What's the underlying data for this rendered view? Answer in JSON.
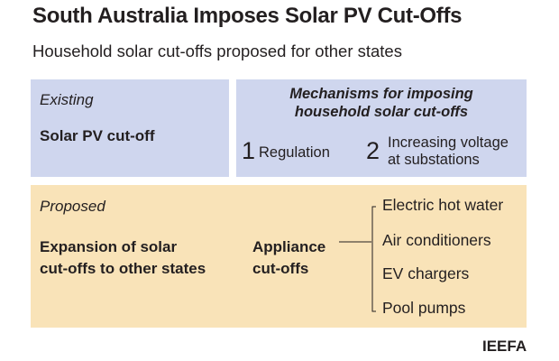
{
  "title": "South Australia Imposes Solar PV Cut-Offs",
  "subtitle": "Household solar cut-offs proposed for other states",
  "existing": {
    "label": "Existing",
    "value": "Solar PV cut-off"
  },
  "mechanisms": {
    "title_line1": "Mechanisms for imposing",
    "title_line2": "household solar cut-offs",
    "items": [
      {
        "num": "1",
        "label_line1": "Regulation",
        "label_line2": ""
      },
      {
        "num": "2",
        "label_line1": "Increasing voltage",
        "label_line2": "at substations"
      }
    ]
  },
  "proposed": {
    "label": "Proposed",
    "value_line1": "Expansion of solar",
    "value_line2": "cut-offs to other states",
    "appliance_line1": "Appliance",
    "appliance_line2": "cut-offs",
    "appliances": [
      "Electric hot water",
      "Air conditioners",
      "EV chargers",
      "Pool pumps"
    ]
  },
  "source": "IEEFA",
  "colors": {
    "blue_box": "#cfd6ee",
    "tan_box": "#f9e3b8",
    "text": "#231f20"
  }
}
